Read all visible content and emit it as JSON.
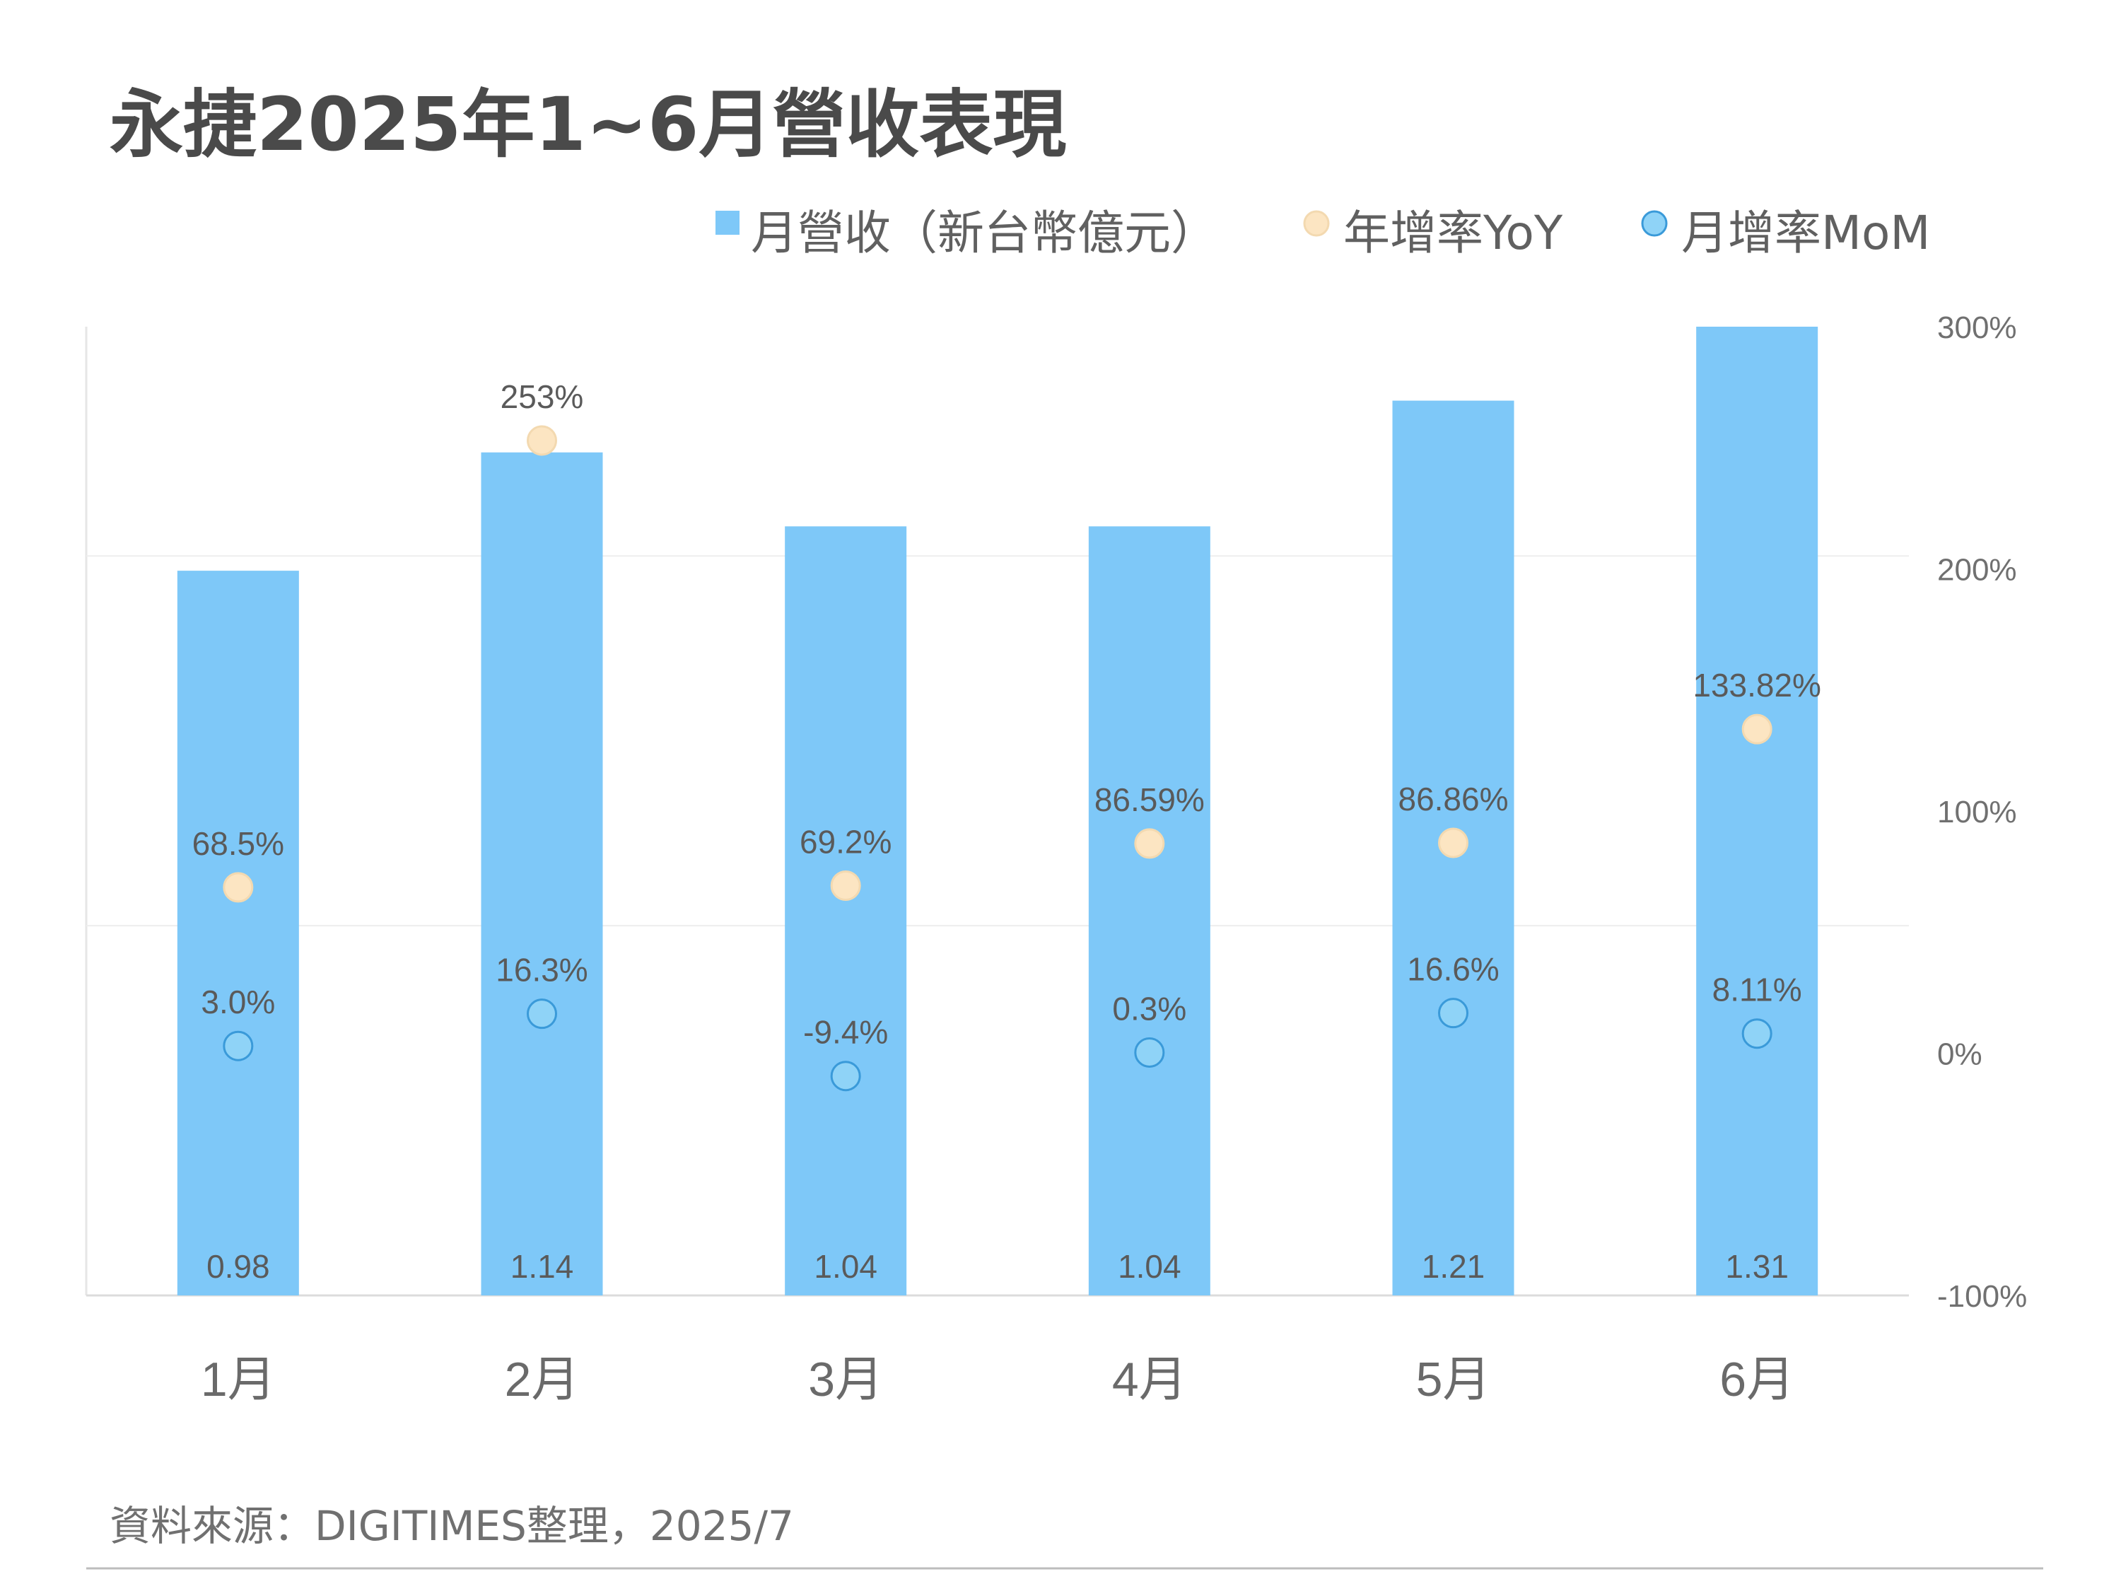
{
  "chart_data": {
    "type": "bar",
    "title": "永捷2025年1~6月營收表現",
    "categories": [
      "1月",
      "2月",
      "3月",
      "4月",
      "5月",
      "6月"
    ],
    "series": [
      {
        "name": "月營收（新台幣億元）",
        "kind": "bar",
        "axis": "left",
        "color": "#7ec8f8",
        "values": [
          0.98,
          1.14,
          1.04,
          1.04,
          1.21,
          1.31
        ],
        "labels": [
          "0.98",
          "1.14",
          "1.04",
          "1.04",
          "1.21",
          "1.31"
        ]
      },
      {
        "name": "年增率YoY",
        "kind": "scatter",
        "axis": "right",
        "color": "#fce5c2",
        "stroke": "#f3d9b0",
        "values": [
          68.5,
          253,
          69.2,
          86.59,
          86.86,
          133.82
        ],
        "labels": [
          "68.5%",
          "253%",
          "69.2%",
          "86.59%",
          "86.86%",
          "133.82%"
        ]
      },
      {
        "name": "月增率MoM",
        "kind": "scatter",
        "axis": "right",
        "color": "#8fd3f7",
        "stroke": "#3a9ad9",
        "values": [
          3.0,
          16.3,
          -9.4,
          0.3,
          16.6,
          8.11
        ],
        "labels": [
          "3.0%",
          "16.3%",
          "-9.4%",
          "0.3%",
          "16.6%",
          "8.11%"
        ]
      }
    ],
    "left_axis": {
      "min": 0,
      "max": 1.31,
      "gridlines": [
        0.5,
        1.0
      ],
      "labels_shown": false
    },
    "right_axis": {
      "min": -100,
      "max": 300,
      "ticks": [
        300,
        200,
        100,
        0,
        -100
      ],
      "tick_labels": [
        "300%",
        "200%",
        "100%",
        "0%",
        "-100%"
      ]
    },
    "legend": {
      "position": "top-right"
    },
    "grid": true
  },
  "source": "資料來源：DIGITIMES整理，2025/7"
}
